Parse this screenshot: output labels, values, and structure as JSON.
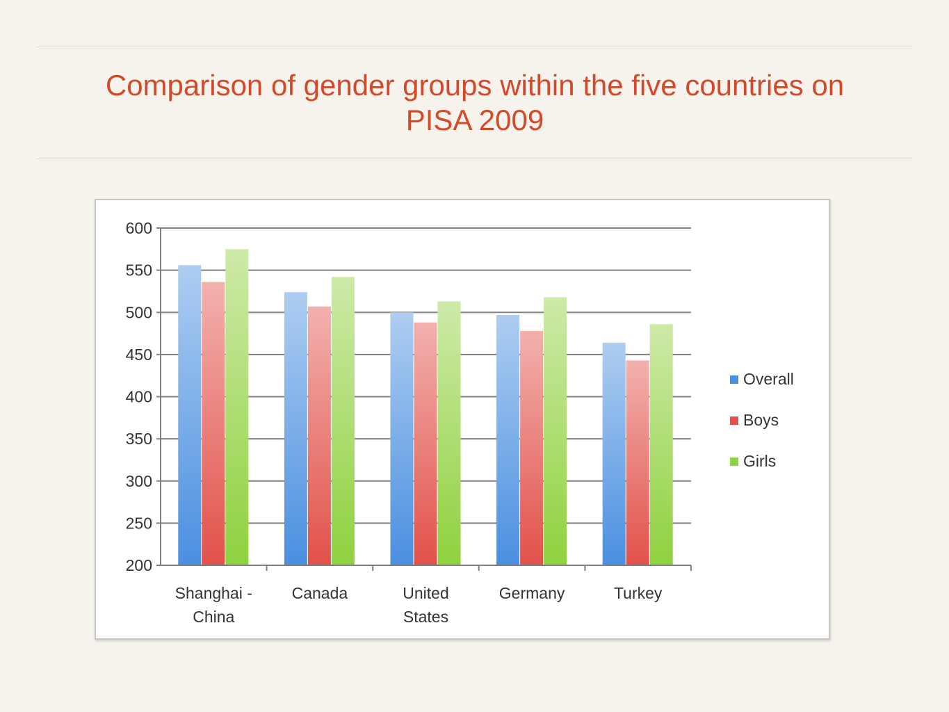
{
  "slide": {
    "title_lines": [
      "Comparison of gender groups within the five countries on",
      "PISA 2009"
    ]
  },
  "colors": {
    "title": "#d24a2c",
    "Overall": "#4a8fe0",
    "Boys": "#e2514a",
    "Girls": "#8fd13e",
    "grid": "#808080"
  },
  "chart_data": {
    "type": "bar",
    "title": "",
    "xlabel": "",
    "ylabel": "",
    "ylim": [
      200,
      600
    ],
    "yticks": [
      200,
      250,
      300,
      350,
      400,
      450,
      500,
      550,
      600
    ],
    "grid": true,
    "legend_position": "right",
    "categories": [
      [
        "Shanghai -",
        "China"
      ],
      [
        "Canada"
      ],
      [
        "United",
        "States"
      ],
      [
        "Germany"
      ],
      [
        "Turkey"
      ]
    ],
    "series": [
      {
        "name": "Overall",
        "values": [
          556,
          524,
          500,
          497,
          464
        ]
      },
      {
        "name": "Boys",
        "values": [
          536,
          507,
          488,
          478,
          443
        ]
      },
      {
        "name": "Girls",
        "values": [
          575,
          542,
          513,
          518,
          486
        ]
      }
    ]
  }
}
